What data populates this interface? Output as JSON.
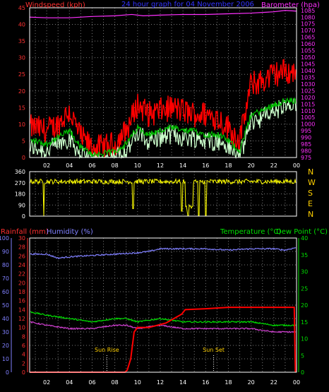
{
  "colors": {
    "background": "#000000",
    "plot_border": "#ffffff",
    "grid": "#7a7a7a",
    "wind_gust": "#ff0000",
    "wind_avg": "#00c000",
    "wind_min": "#ccffcc",
    "barometer": "#ff30ff",
    "direction": "#ffff00",
    "rainfall": "#ff0000",
    "humidity": "#8080ff",
    "temperature": "#00e000",
    "dew_point": "#d040d0",
    "title": "#3333ff",
    "sun_label": "#ffd000",
    "left_axis_red": "#ff3030",
    "right_axis_magenta": "#ff30ff",
    "green_axis": "#00e000",
    "compass": "#ffd000"
  },
  "chart_data": [
    {
      "id": "wind",
      "type": "line",
      "title": "24 hour graph for  04 November 2006",
      "ylabel_left": "Windspeed (kph)",
      "ylabel_right": "Barometer (hpa)",
      "ylim_left": [
        0,
        45
      ],
      "left_ticks": [
        "0",
        "5",
        "10",
        "15",
        "20",
        "25",
        "30",
        "35",
        "40",
        "45"
      ],
      "ylim_right": [
        975,
        1087
      ],
      "right_ticks": [
        "975",
        "980",
        "985",
        "990",
        "995",
        "1000",
        "1005",
        "1010",
        "1015",
        "1020",
        "1025",
        "1030",
        "1035",
        "1040",
        "1045",
        "1050",
        "1055",
        "1060",
        "1065",
        "1070",
        "1075",
        "1080",
        "1085"
      ],
      "xlim": [
        0.5,
        24
      ],
      "x_ticks": [
        "02",
        "04",
        "06",
        "08",
        "10",
        "12",
        "14",
        "16",
        "18",
        "20",
        "22",
        "00"
      ],
      "grid": true,
      "gust_profile": {
        "hours": [
          1,
          2,
          3,
          4,
          5,
          6,
          7,
          8,
          9,
          10,
          11,
          12,
          13,
          14,
          15,
          16,
          17,
          18,
          19,
          20,
          21,
          22,
          23,
          24
        ],
        "values": [
          9,
          8,
          10,
          14,
          6,
          3,
          3,
          4,
          8,
          16,
          13,
          14,
          15,
          14,
          13,
          13,
          12,
          9,
          5,
          22,
          23,
          25,
          26,
          25
        ]
      },
      "avg_profile": {
        "hours": [
          1,
          2,
          3,
          4,
          5,
          6,
          7,
          8,
          9,
          10,
          11,
          12,
          13,
          14,
          15,
          16,
          17,
          18,
          19,
          20,
          21,
          22,
          23,
          24
        ],
        "values": [
          5,
          4,
          6,
          8,
          3,
          1,
          1,
          2,
          4,
          9,
          7,
          8,
          9,
          8,
          8,
          7,
          7,
          5,
          2,
          13,
          14,
          16,
          17,
          17
        ]
      },
      "barometer": {
        "hours": [
          0.5,
          2,
          4,
          6,
          8,
          9.5,
          10.5,
          12,
          14,
          16,
          18,
          20,
          22,
          23,
          24
        ],
        "values": [
          1080,
          1079.5,
          1079.5,
          1080.5,
          1081,
          1082,
          1081,
          1081.5,
          1082,
          1082,
          1082.5,
          1083,
          1084,
          1085,
          1084.5
        ]
      }
    },
    {
      "id": "direction",
      "type": "line",
      "ylim": [
        0,
        360
      ],
      "y_ticks": [
        "0",
        "90",
        "180",
        "270",
        "360"
      ],
      "compass_labels": [
        "N",
        "W",
        "S",
        "E",
        "N"
      ],
      "xlim": [
        0.5,
        24
      ],
      "grid": true,
      "baseline_deg": 280,
      "drops": [
        {
          "hour": 1.75,
          "deg": 0
        },
        {
          "hour": 9.6,
          "deg": 60
        },
        {
          "hour": 13.9,
          "deg": 40
        },
        {
          "hour": 14.45,
          "deg": 0
        },
        {
          "hour": 15.4,
          "deg": 0
        },
        {
          "hour": 16.0,
          "deg": 0
        }
      ]
    },
    {
      "id": "rain_hum_temp",
      "type": "line",
      "ylabel_left": "Rainfall (mm)",
      "ylabel_left2": "Humidity (%)",
      "ylabel_right": "Temperature (°C)",
      "ylabel_right2": "Dew Point (°C)",
      "humidity_ticks": [
        "0",
        "10",
        "20",
        "30",
        "40",
        "50",
        "60",
        "70",
        "80",
        "90",
        "100"
      ],
      "rain_ticks": [
        "0",
        "2",
        "4",
        "6",
        "8",
        "10",
        "12",
        "14",
        "16",
        "18",
        "20",
        "22",
        "24",
        "26",
        "28",
        "30"
      ],
      "temp_ticks": [
        "0",
        "5",
        "10",
        "15",
        "20",
        "25",
        "30",
        "35",
        "40"
      ],
      "ylim_humidity": [
        0,
        100
      ],
      "ylim_rain": [
        0,
        30
      ],
      "ylim_temp": [
        0,
        40
      ],
      "xlim": [
        0.5,
        24
      ],
      "x_ticks": [
        "02",
        "04",
        "06",
        "08",
        "10",
        "12",
        "14",
        "16",
        "18",
        "20",
        "22",
        "00"
      ],
      "grid": true,
      "annotations": [
        {
          "text": "Sun Rise",
          "hour": 7.3
        },
        {
          "text": "Sun Set",
          "hour": 16.7
        }
      ],
      "humidity": {
        "hours": [
          0.5,
          2,
          3,
          4,
          6,
          8,
          10,
          11,
          12,
          14,
          16,
          18,
          20,
          22,
          23,
          24
        ],
        "values": [
          88,
          88,
          85,
          86,
          87,
          88,
          89,
          90,
          92,
          92,
          92,
          91,
          92,
          92,
          91,
          93
        ]
      },
      "temperature": {
        "hours": [
          0.5,
          2,
          4,
          6,
          8,
          9,
          10,
          12,
          14,
          16,
          18,
          20,
          22,
          23,
          24
        ],
        "values": [
          18,
          17,
          16,
          15,
          16,
          16,
          15,
          16,
          15,
          15,
          15,
          15,
          14,
          14,
          14
        ]
      },
      "dew_point": {
        "hours": [
          0.5,
          2,
          4,
          6,
          8,
          9,
          10,
          12,
          14,
          16,
          18,
          20,
          22,
          23,
          24
        ],
        "values": [
          15,
          14,
          13,
          13,
          14,
          14,
          13,
          14,
          13,
          13,
          13,
          13,
          12,
          12,
          12
        ]
      },
      "rainfall": {
        "hours": [
          0.5,
          8.9,
          9.1,
          9.4,
          9.7,
          10,
          11,
          12.5,
          13.9,
          14.2,
          16,
          18,
          22,
          23.8,
          23.9
        ],
        "values": [
          0,
          0,
          0.5,
          3,
          9,
          10,
          10,
          11,
          13,
          14,
          14.2,
          14.5,
          14.5,
          14.5,
          0
        ]
      }
    }
  ]
}
